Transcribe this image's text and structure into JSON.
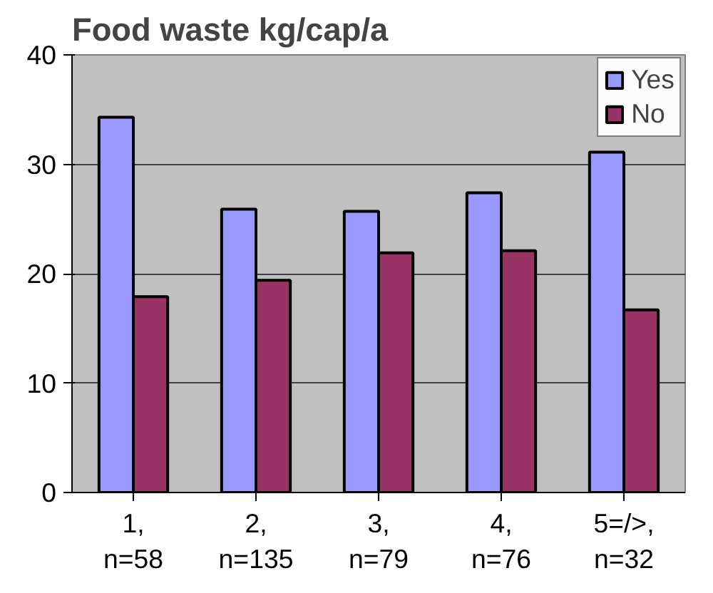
{
  "chart_data": {
    "type": "bar",
    "title": "Food waste kg/cap/a",
    "categories": [
      "1,\nn=58",
      "2,\nn=135",
      "3,\nn=79",
      "4,\nn=76",
      "5=/>,\nn=32"
    ],
    "series": [
      {
        "name": "Yes",
        "color": "#9999ff",
        "values": [
          34.3,
          25.9,
          25.7,
          27.4,
          31.1
        ]
      },
      {
        "name": "No",
        "color": "#993366",
        "values": [
          17.9,
          19.4,
          21.9,
          22.1,
          16.7
        ]
      }
    ],
    "ylim": [
      0,
      40
    ],
    "yticks": [
      0,
      10,
      20,
      30,
      40
    ],
    "grid": "y",
    "legend": "top right"
  }
}
